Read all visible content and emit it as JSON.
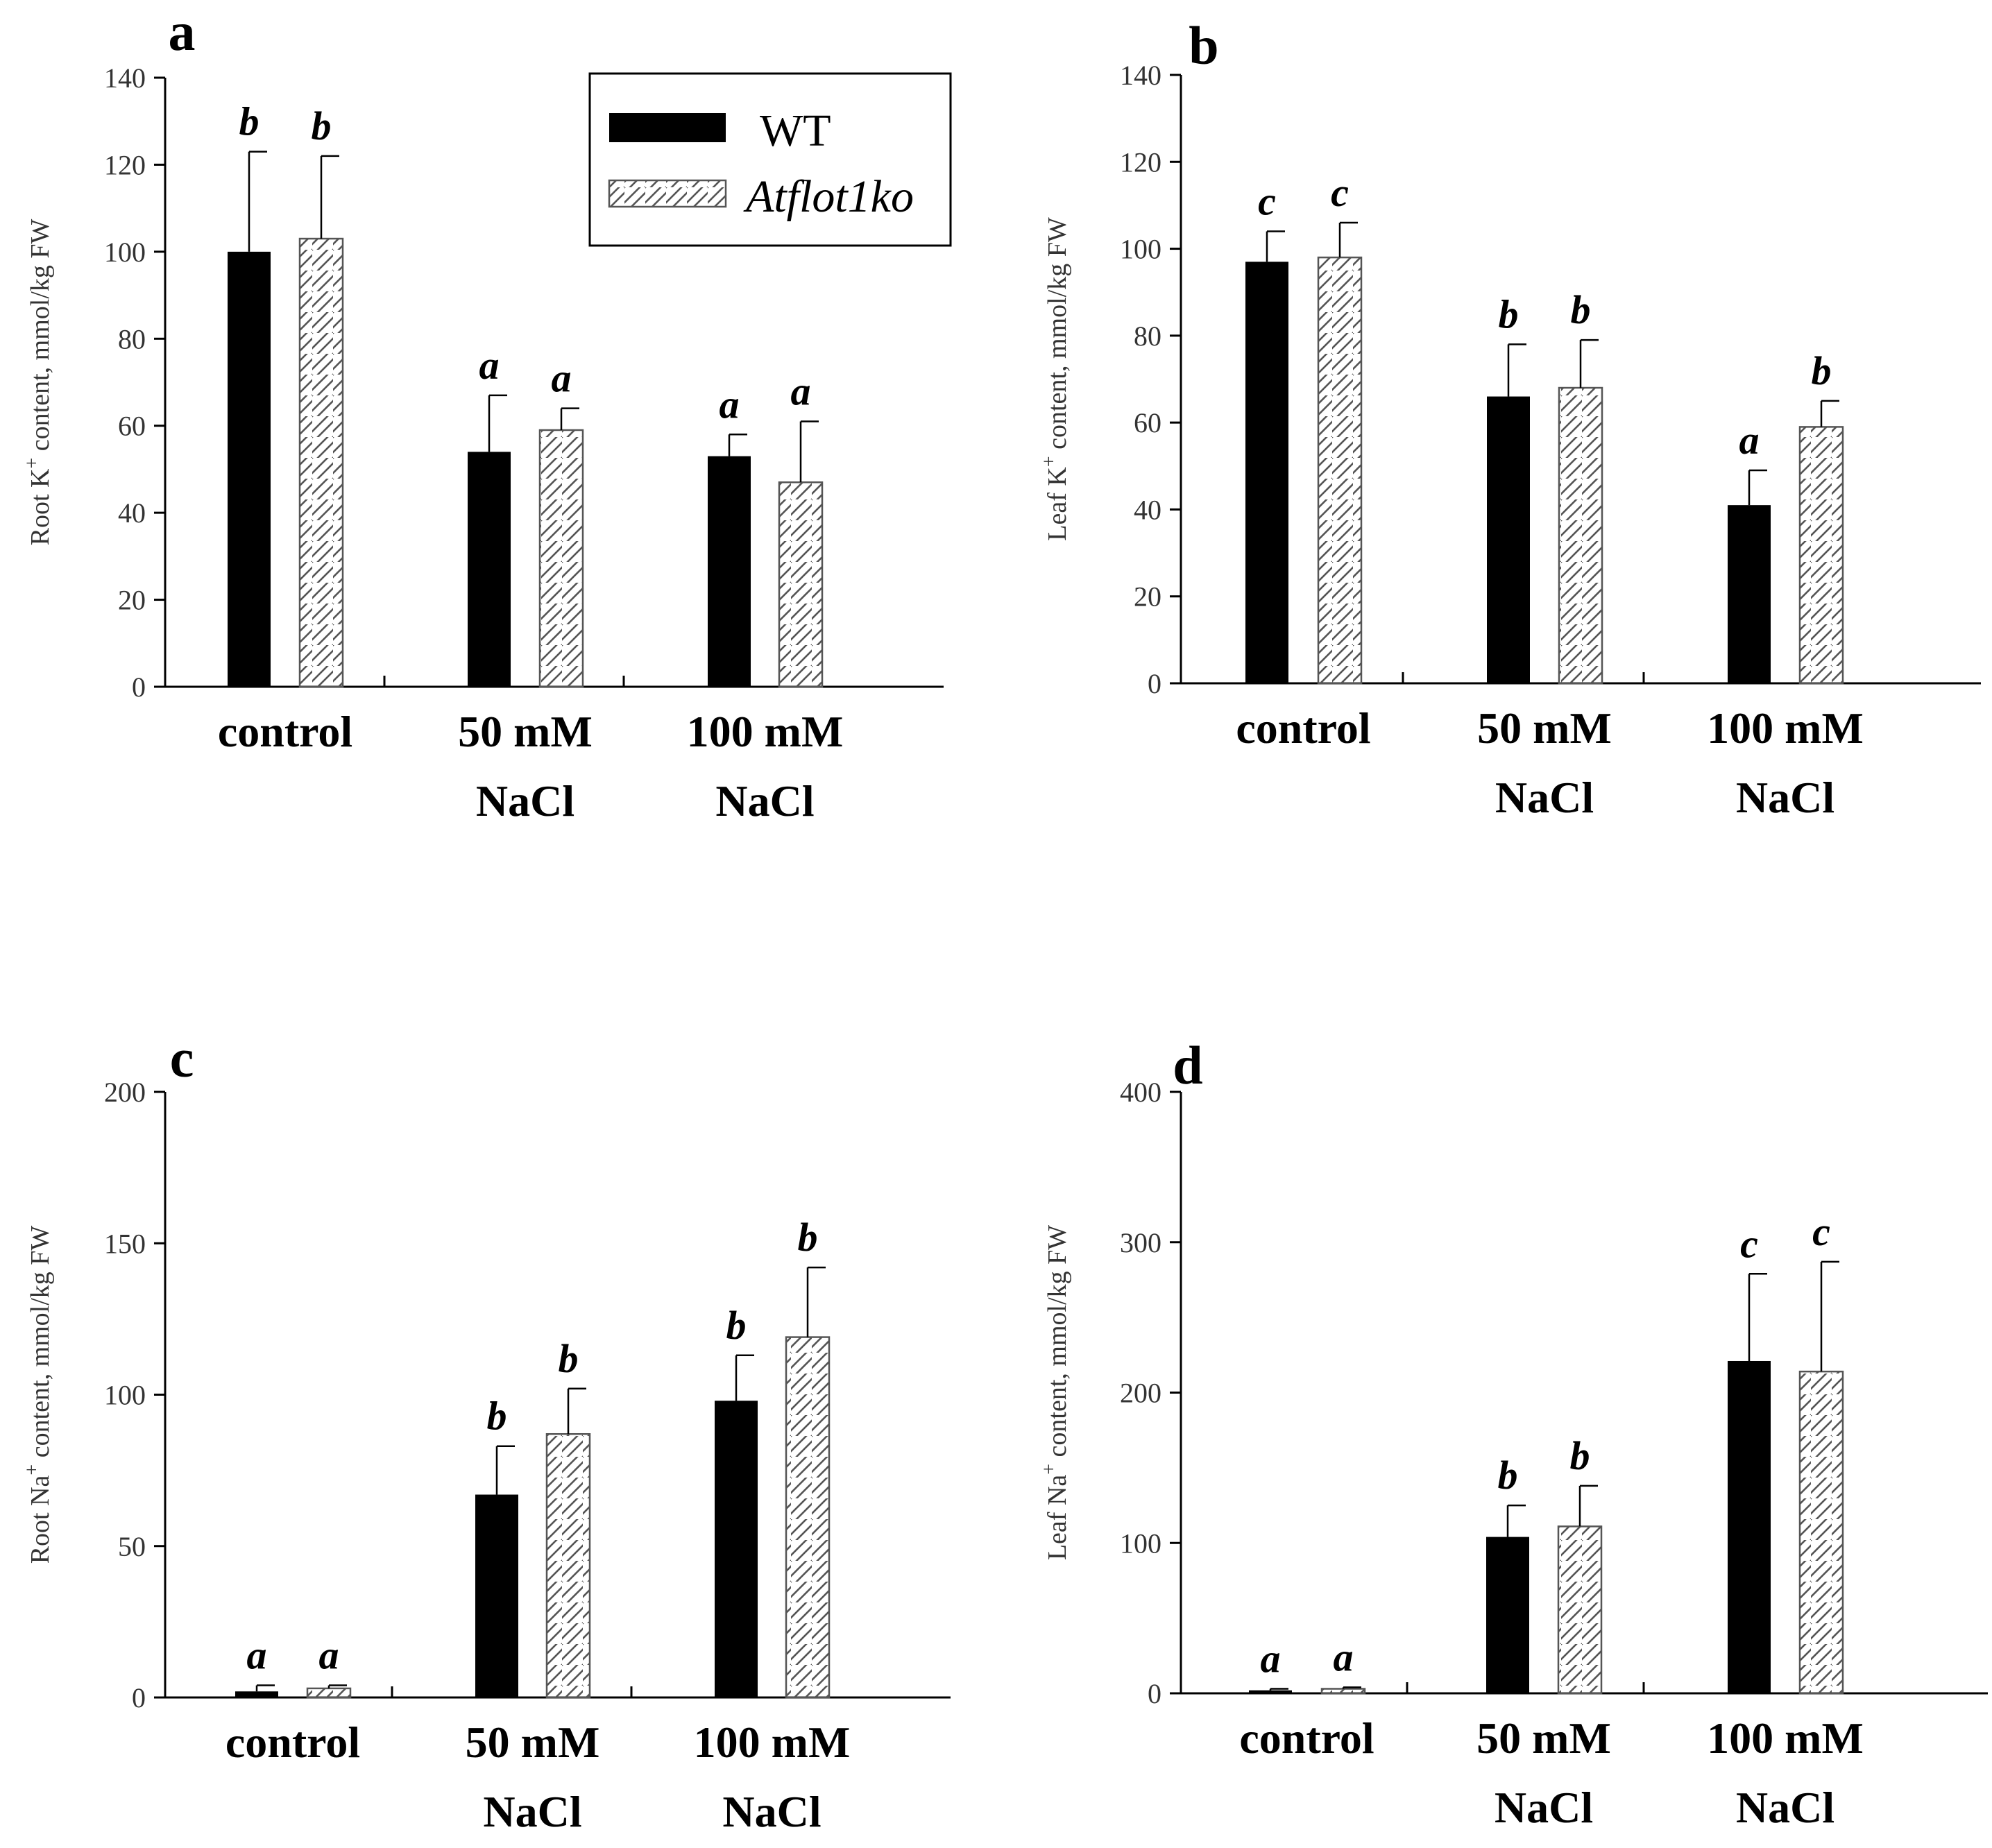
{
  "legend": {
    "entries": [
      {
        "name": "WT",
        "fill": "solid",
        "color": "#000000"
      },
      {
        "name": "Atflot1ko",
        "fill": "hatched",
        "color": "#ffffff"
      }
    ]
  },
  "chart_data": [
    {
      "panel": "a",
      "type": "bar",
      "ylabel": "Root K+ content, mmol/kg FW",
      "ylim": [
        0,
        140
      ],
      "yticks": [
        0,
        20,
        40,
        60,
        80,
        100,
        120,
        140
      ],
      "categories": [
        [
          "control"
        ],
        [
          "50 mM",
          "NaCl"
        ],
        [
          "100 mM",
          "NaCl"
        ]
      ],
      "series": [
        {
          "name": "WT",
          "values": [
            100,
            54,
            53
          ],
          "errors": [
            23,
            13,
            5
          ],
          "letters": [
            "b",
            "a",
            "a"
          ]
        },
        {
          "name": "Atflot1ko",
          "values": [
            103,
            59,
            47
          ],
          "errors": [
            19,
            5,
            14
          ],
          "letters": [
            "b",
            "a",
            "a"
          ]
        }
      ]
    },
    {
      "panel": "b",
      "type": "bar",
      "ylabel": "Leaf K+ content, mmol/kg FW",
      "ylim": [
        0,
        140
      ],
      "yticks": [
        0,
        20,
        40,
        60,
        80,
        100,
        120,
        140
      ],
      "categories": [
        [
          "control"
        ],
        [
          "50 mM",
          "NaCl"
        ],
        [
          "100 mM",
          "NaCl"
        ]
      ],
      "series": [
        {
          "name": "WT",
          "values": [
            97,
            66,
            41
          ],
          "errors": [
            7,
            12,
            8
          ],
          "letters": [
            "c",
            "b",
            "a"
          ]
        },
        {
          "name": "Atflot1ko",
          "values": [
            98,
            68,
            59
          ],
          "errors": [
            8,
            11,
            6
          ],
          "letters": [
            "c",
            "b",
            "b"
          ]
        }
      ]
    },
    {
      "panel": "c",
      "type": "bar",
      "ylabel": "Root Na+ content, mmol/kg FW",
      "ylim": [
        0,
        200
      ],
      "yticks": [
        0,
        50,
        100,
        150,
        200
      ],
      "categories": [
        [
          "control"
        ],
        [
          "50 mM",
          "NaCl"
        ],
        [
          "100 mM",
          "NaCl"
        ]
      ],
      "series": [
        {
          "name": "WT",
          "values": [
            2,
            67,
            98
          ],
          "errors": [
            2,
            16,
            15
          ],
          "letters": [
            "a",
            "b",
            "b"
          ]
        },
        {
          "name": "Atflot1ko",
          "values": [
            3,
            87,
            119
          ],
          "errors": [
            1,
            15,
            23
          ],
          "letters": [
            "a",
            "b",
            "b"
          ]
        }
      ]
    },
    {
      "panel": "d",
      "type": "bar",
      "ylabel": "Leaf Na+ content, mmol/kg FW",
      "ylim": [
        0,
        400
      ],
      "yticks": [
        0,
        100,
        200,
        300,
        400
      ],
      "categories": [
        [
          "control"
        ],
        [
          "50 mM",
          "NaCl"
        ],
        [
          "100 mM",
          "NaCl"
        ]
      ],
      "series": [
        {
          "name": "WT",
          "values": [
            2,
            104,
            221
          ],
          "errors": [
            1,
            21,
            58
          ],
          "letters": [
            "a",
            "b",
            "c"
          ]
        },
        {
          "name": "Atflot1ko",
          "values": [
            3,
            111,
            214
          ],
          "errors": [
            1,
            27,
            73
          ],
          "letters": [
            "a",
            "b",
            "c"
          ]
        }
      ]
    }
  ]
}
